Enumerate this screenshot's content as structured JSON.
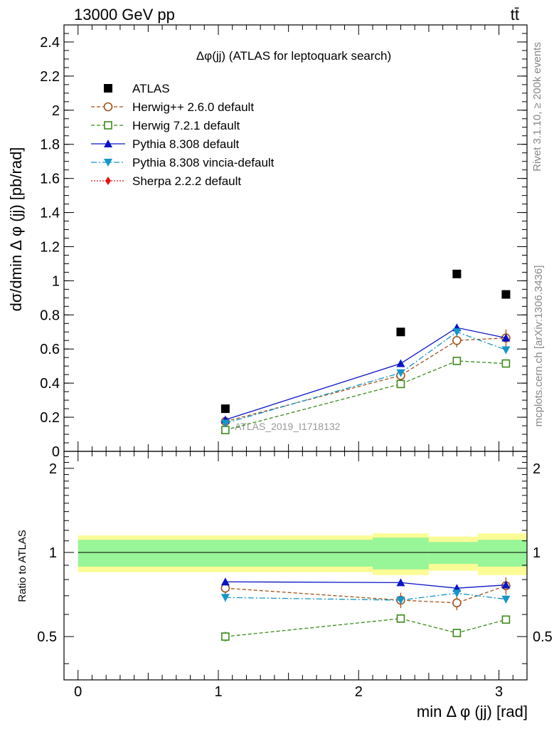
{
  "header": {
    "beam": "13000 GeV pp",
    "process": "tt̄"
  },
  "side_labels": {
    "rivet": "Rivet 3.1.10, ≥ 200k events",
    "mcplots": "mcplots.cern.ch [arXiv:1306.3436]"
  },
  "colors": {
    "atlas": "#000000",
    "herwigpp": "#a0521a",
    "herwig7": "#3a8a1a",
    "pythia": "#0a14c8",
    "vincia": "#1496c8",
    "sherpa": "#e61414",
    "band_inner": "#98f598",
    "band_outer": "#fcfc96"
  },
  "chart_data": {
    "type": "scatter",
    "title": "Δφ(jj) (ATLAS for leptoquark search)",
    "analysis_label": "ATLAS_2019_I1718132",
    "xlabel": "min Δ φ (jj) [rad]",
    "ylabel": "dσ/dmin Δ φ (jj) [pb/rad]",
    "ratio_ylabel": "Ratio to ATLAS",
    "xlim": [
      -0.1,
      3.2
    ],
    "ylim": [
      0,
      2.5
    ],
    "ratio_ylim": [
      0.35,
      2.3
    ],
    "x_ticks": [
      0,
      1,
      2,
      3
    ],
    "y_ticks": [
      0,
      0.2,
      0.4,
      0.6,
      0.8,
      1,
      1.2,
      1.4,
      1.6,
      1.8,
      2,
      2.2,
      2.4
    ],
    "y_tick_labels": [
      "0",
      "0.2",
      "0.4",
      "0.6",
      "0.8",
      "1",
      "1.2",
      "1.4",
      "1.6",
      "1.8",
      "2",
      "2.2",
      "2.4"
    ],
    "ratio_ticks": [
      0.5,
      1,
      2
    ],
    "ratio_tick_labels": [
      "0.5",
      "1",
      "2"
    ],
    "x": [
      1.05,
      2.3,
      2.7,
      3.05
    ],
    "data": {
      "name": "ATLAS",
      "values": [
        0.25,
        0.7,
        1.04,
        0.92
      ],
      "bins": [
        [
          0,
          2.1
        ],
        [
          2.1,
          2.5
        ],
        [
          2.5,
          2.85
        ],
        [
          2.85,
          3.2
        ]
      ],
      "band_inner": [
        0.11,
        0.13,
        0.09,
        0.11
      ],
      "band_outer": [
        0.15,
        0.17,
        0.14,
        0.17
      ]
    },
    "series": [
      {
        "name": "Herwig++ 2.6.0 default",
        "key": "herwigpp",
        "values": [
          0.175,
          0.445,
          0.65,
          0.665
        ],
        "ratio": [
          0.745,
          0.675,
          0.66,
          0.76
        ],
        "err": [
          0.012,
          0.03,
          0.04,
          0.05
        ]
      },
      {
        "name": "Herwig 7.2.1 default",
        "key": "herwig7",
        "values": [
          0.125,
          0.395,
          0.53,
          0.515
        ],
        "ratio": [
          0.5,
          0.58,
          0.515,
          0.575
        ],
        "err": [
          0.005,
          0.012,
          0.015,
          0.015
        ]
      },
      {
        "name": "Pythia 8.308 default",
        "key": "pythia",
        "values": [
          0.185,
          0.515,
          0.725,
          0.665
        ],
        "ratio": [
          0.785,
          0.78,
          0.745,
          0.765
        ],
        "err": [
          0.006,
          0.015,
          0.02,
          0.02
        ]
      },
      {
        "name": "Pythia 8.308 vincia-default",
        "key": "vincia",
        "values": [
          0.165,
          0.46,
          0.7,
          0.595
        ],
        "ratio": [
          0.69,
          0.675,
          0.715,
          0.68
        ],
        "err": [
          0.006,
          0.015,
          0.02,
          0.02
        ]
      },
      {
        "name": "Sherpa 2.2.2 default",
        "key": "sherpa",
        "values": [],
        "ratio": [],
        "err": []
      }
    ]
  }
}
